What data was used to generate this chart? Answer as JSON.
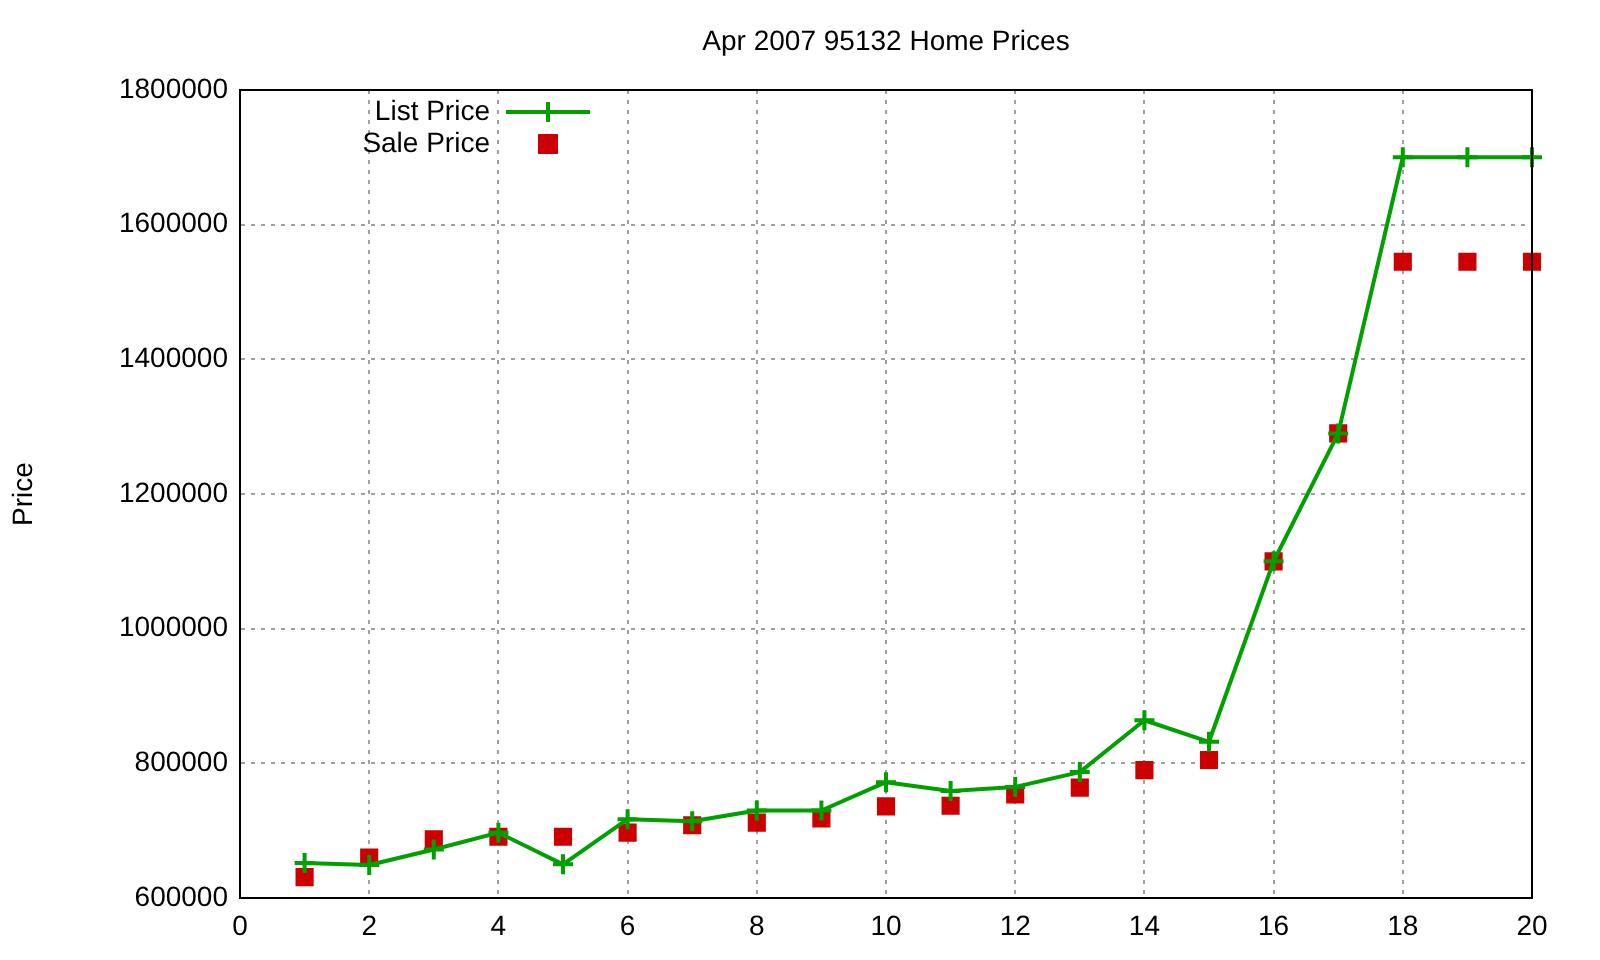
{
  "chart_data": {
    "type": "line",
    "title": "Apr 2007 95132 Home Prices",
    "ylabel": "Price",
    "x": [
      1,
      2,
      3,
      4,
      5,
      6,
      7,
      8,
      9,
      10,
      11,
      12,
      13,
      14,
      15,
      16,
      17,
      18,
      19,
      20
    ],
    "series": [
      {
        "name": "List Price",
        "type": "line",
        "marker": "cross",
        "color": "#00a000",
        "values": [
          652000,
          649000,
          672000,
          697000,
          650000,
          717000,
          714000,
          730000,
          730000,
          772000,
          759000,
          765000,
          787000,
          864000,
          832000,
          1100000,
          1290000,
          1700000,
          1700000,
          1700000
        ]
      },
      {
        "name": "Sale Price",
        "type": "scatter",
        "marker": "square",
        "color": "#cc0000",
        "values": [
          631000,
          660000,
          687000,
          691000,
          691000,
          697000,
          708000,
          712000,
          718000,
          736000,
          737000,
          754000,
          764000,
          790000,
          805000,
          1100000,
          1290000,
          1545000,
          1545000,
          1545000
        ]
      }
    ],
    "xlim": [
      0,
      20
    ],
    "xticks": [
      0,
      2,
      4,
      6,
      8,
      10,
      12,
      14,
      16,
      18,
      20
    ],
    "ylim": [
      600000,
      1800000
    ],
    "yticks": [
      600000,
      800000,
      1000000,
      1200000,
      1400000,
      1600000,
      1800000
    ],
    "grid": true,
    "legend": "top left"
  }
}
